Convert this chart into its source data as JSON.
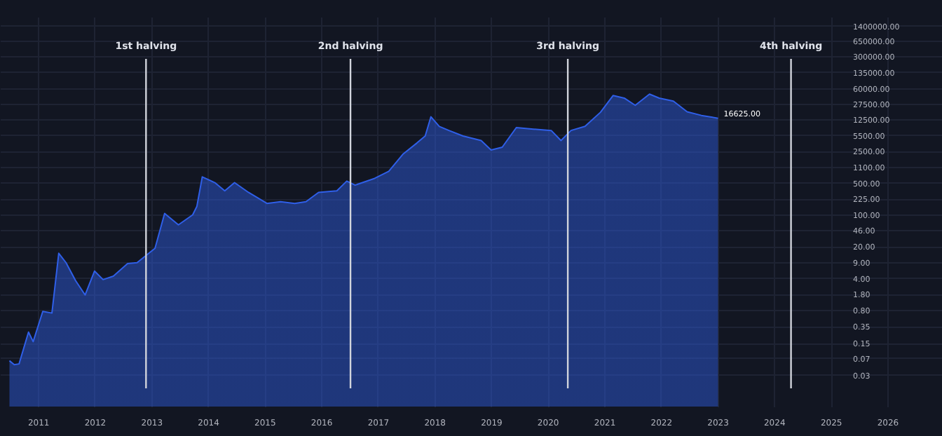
{
  "chart_data": {
    "type": "area",
    "x": [
      "2010-07",
      "2010-08",
      "2010-09",
      "2010-11",
      "2010-12",
      "2011-02",
      "2011-04",
      "2011-05-15",
      "2011-07",
      "2011-09",
      "2011-11",
      "2012-01",
      "2012-02-25",
      "2012-05",
      "2012-08",
      "2012-10",
      "2013-01-25",
      "2013-03-28",
      "2013-06-25",
      "2013-09-25",
      "2013-10-22",
      "2013-11-26",
      "2014-02-15",
      "2014-04-20",
      "2014-06-22",
      "2014-09-20",
      "2015-01-17",
      "2015-04-15",
      "2015-07-15",
      "2015-09-26",
      "2015-12-16",
      "2016-04-12",
      "2016-06-15",
      "2016-08-08",
      "2016-12-12",
      "2017-03-13",
      "2017-06-12",
      "2017-09-10",
      "2017-11-03",
      "2017-12-10",
      "2018-02-02",
      "2018-04-05",
      "2018-07-05",
      "2018-10-30",
      "2019-01-02",
      "2019-03-15",
      "2019-06-14",
      "2019-10-01",
      "2020-01-25",
      "2020-03-28",
      "2020-06-01",
      "2020-08-30",
      "2020-12-08",
      "2021-02-27",
      "2021-05-10",
      "2021-07-20",
      "2021-10-20",
      "2021-12-22",
      "2022-03-23",
      "2022-06-20",
      "2022-09-20",
      "2023-01-05"
    ],
    "series": [
      {
        "color": "#2f5fe8",
        "values": [
          0.061,
          0.05,
          0.052,
          0.26,
          0.16,
          0.74,
          0.68,
          14,
          8.7,
          3.5,
          1.7,
          5.7,
          3.7,
          4.4,
          8.3,
          8.7,
          18,
          105,
          59,
          98,
          150,
          670,
          500,
          330,
          500,
          305,
          175,
          190,
          175,
          190,
          305,
          330,
          540,
          440,
          620,
          890,
          2100,
          3700,
          5300,
          14000,
          8600,
          7000,
          5300,
          4200,
          2600,
          3000,
          8100,
          7500,
          7000,
          4200,
          7000,
          8600,
          17600,
          41000,
          36000,
          25000,
          44000,
          36000,
          31000,
          18000,
          15000,
          13000
        ]
      }
    ],
    "log": "y",
    "ylim": [
      0.006,
      2200000
    ],
    "yticks": [
      {
        "value": 0.03,
        "label": "0.03"
      },
      {
        "value": 0.07,
        "label": "0.07"
      },
      {
        "value": 0.15,
        "label": "0.15"
      },
      {
        "value": 0.35,
        "label": "0.35"
      },
      {
        "value": 0.8,
        "label": "0.80"
      },
      {
        "value": 1.8,
        "label": "1.80"
      },
      {
        "value": 4,
        "label": "4.00"
      },
      {
        "value": 9,
        "label": "9.00"
      },
      {
        "value": 20,
        "label": "20.00"
      },
      {
        "value": 46,
        "label": "46.00"
      },
      {
        "value": 100,
        "label": "100.00"
      },
      {
        "value": 225,
        "label": "225.00"
      },
      {
        "value": 500,
        "label": "500.00"
      },
      {
        "value": 1100,
        "label": "1100.00"
      },
      {
        "value": 2500,
        "label": "2500.00"
      },
      {
        "value": 5500,
        "label": "5500.00"
      },
      {
        "value": 12500,
        "label": "12500.00"
      },
      {
        "value": 27500,
        "label": "27500.00"
      },
      {
        "value": 60000,
        "label": "60000.00"
      },
      {
        "value": 135000,
        "label": "135000.00"
      },
      {
        "value": 300000,
        "label": "300000.00"
      },
      {
        "value": 650000,
        "label": "650000.00"
      },
      {
        "value": 1400000,
        "label": "1400000.00"
      }
    ],
    "xlim": [
      "2010-05-01",
      "2026-12-20"
    ],
    "xticks": [
      "2011",
      "2012",
      "2013",
      "2014",
      "2015",
      "2016",
      "2017",
      "2018",
      "2019",
      "2020",
      "2021",
      "2022",
      "2023",
      "2024",
      "2025",
      "2026"
    ],
    "ref_lines": [
      {
        "axis": "x",
        "value": "2012-11-28",
        "label": "1st halving",
        "color": "#d1d4dc"
      },
      {
        "axis": "x",
        "value": "2016-07-09",
        "label": "2nd halving",
        "color": "#d1d4dc"
      },
      {
        "axis": "x",
        "value": "2020-05-11",
        "label": "3rd halving",
        "color": "#d1d4dc"
      },
      {
        "axis": "x",
        "value": "2024-04-20",
        "label": "4th halving",
        "color": "#d1d4dc"
      }
    ],
    "annotations": [
      {
        "text": "16625.00",
        "x": "2023-01-05",
        "y": 16625
      }
    ],
    "grid": true
  }
}
